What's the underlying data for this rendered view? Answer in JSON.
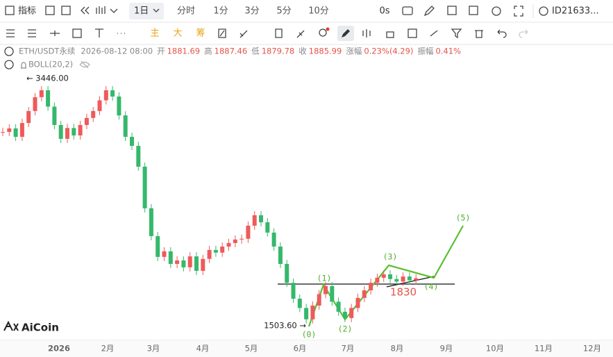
{
  "toolbar": {
    "indicators": "指标",
    "interval": "1日",
    "intervals": [
      "分时",
      "1分",
      "3分",
      "5分",
      "10分"
    ],
    "countdown": "0s",
    "account": "ID21633..."
  },
  "drawing_tools": [
    "主",
    "大",
    "筹"
  ],
  "info": {
    "symbol": "ETH/USDT永续",
    "time": "2026-08-12 08:00",
    "fields": [
      {
        "label": "开",
        "value": "1881.69"
      },
      {
        "label": "高",
        "value": "1887.46"
      },
      {
        "label": "低",
        "value": "1879.78"
      },
      {
        "label": "收",
        "value": "1885.99"
      },
      {
        "label": "涨幅",
        "value": "0.23%(4.29)"
      },
      {
        "label": "振幅",
        "value": "0.41%"
      }
    ],
    "indicator": "BOLL(20,2)"
  },
  "chart": {
    "closes": [
      3049,
      3077,
      3010,
      3120,
      3215,
      3325,
      3380,
      3250,
      3104,
      2994,
      3080,
      3021,
      3104,
      3160,
      3215,
      3300,
      3380,
      3330,
      3180,
      3010,
      2938,
      2773,
      2442,
      2221,
      2056,
      2100,
      2000,
      2028,
      1973,
      2060,
      1945,
      2040,
      2111,
      2090,
      2138,
      2166,
      2194,
      2200,
      2304,
      2387,
      2331,
      2249,
      2138,
      2000,
      1850,
      1724,
      1650,
      1560,
      1669,
      1760,
      1824,
      1700,
      1620,
      1570,
      1650,
      1730,
      1790,
      1850,
      1890,
      1917,
      1880,
      1860,
      1900,
      1870,
      1886
    ],
    "high_label": "← 3446.00",
    "low_label": "1503.60 →",
    "level": "1830",
    "waves": [
      "(0)",
      "(1)",
      "(2)",
      "(3)",
      "(4)",
      "(5)"
    ],
    "months": [
      "2026",
      "2月",
      "3月",
      "4月",
      "5月",
      "6月",
      "7月",
      "8月",
      "9月",
      "10月",
      "11月",
      "12月"
    ]
  },
  "logo": "AiCoin"
}
